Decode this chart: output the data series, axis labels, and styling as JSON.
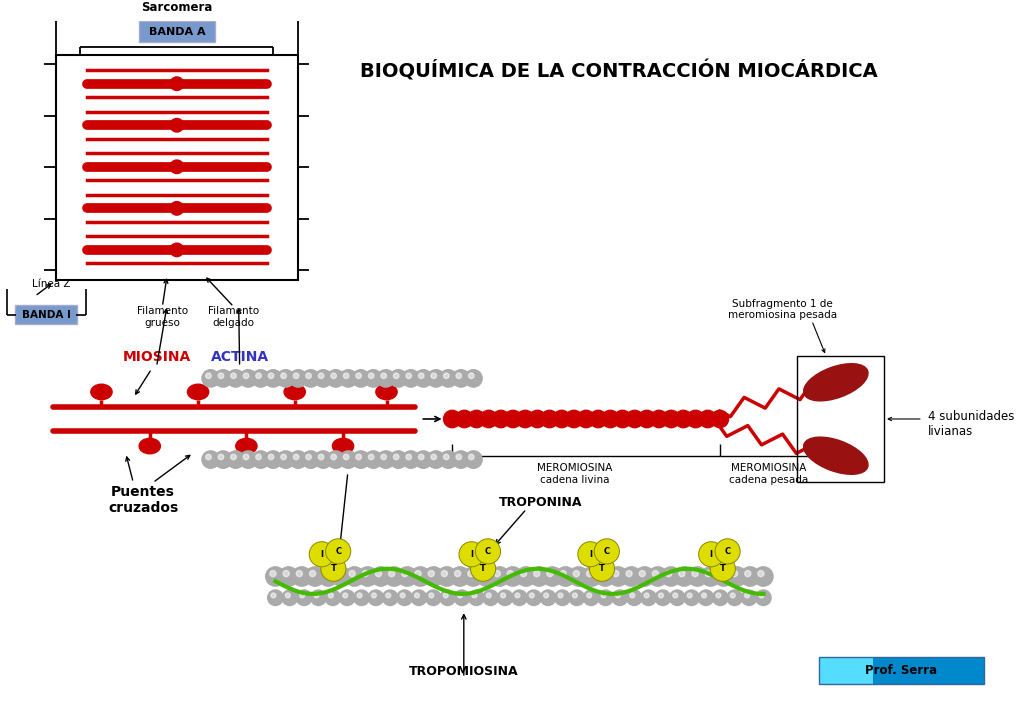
{
  "title": "BIOQUÍMICA DE LA CONTRACCIÓN MIOCÁRDICA",
  "bg_color": "#ffffff",
  "sarcomera_label": "Sarcomera",
  "banda_a_label": "BANDA A",
  "banda_i_label": "BANDA I",
  "linea_z_label": "Línea Z",
  "fil_grueso_label": "Filamento\ngrueso",
  "fil_delgado_label": "Filamento\ndelgado",
  "miosina_label": "MIOSINA",
  "actina_label": "ACTINA",
  "puentes_label": "Puentes\ncruzados",
  "subfrag_label": "Subfragmento 1 de\nmeromiosina pesada",
  "subunidades_label": "4 subunidades\nlivianas",
  "meromiosina_liviana_label": "MEROMIOSINA\ncadena livina",
  "meromiosina_pesada_label": "MEROMIOSINA\ncadena pesada",
  "troponina_label": "TROPONINA",
  "tropomiosina_label": "TROPOMIOSINA",
  "prof_label": "Prof. Serra",
  "sarcomera_color": "#22aa22",
  "banda_a_color": "#7799cc",
  "banda_i_color": "#7799cc",
  "miosina_color": "#cc0000",
  "actina_color": "#3333bb",
  "red": "#cc0000",
  "gray_bead": "#aaaaaa",
  "green_line": "#44bb00",
  "yellow_troponin": "#dddd00"
}
